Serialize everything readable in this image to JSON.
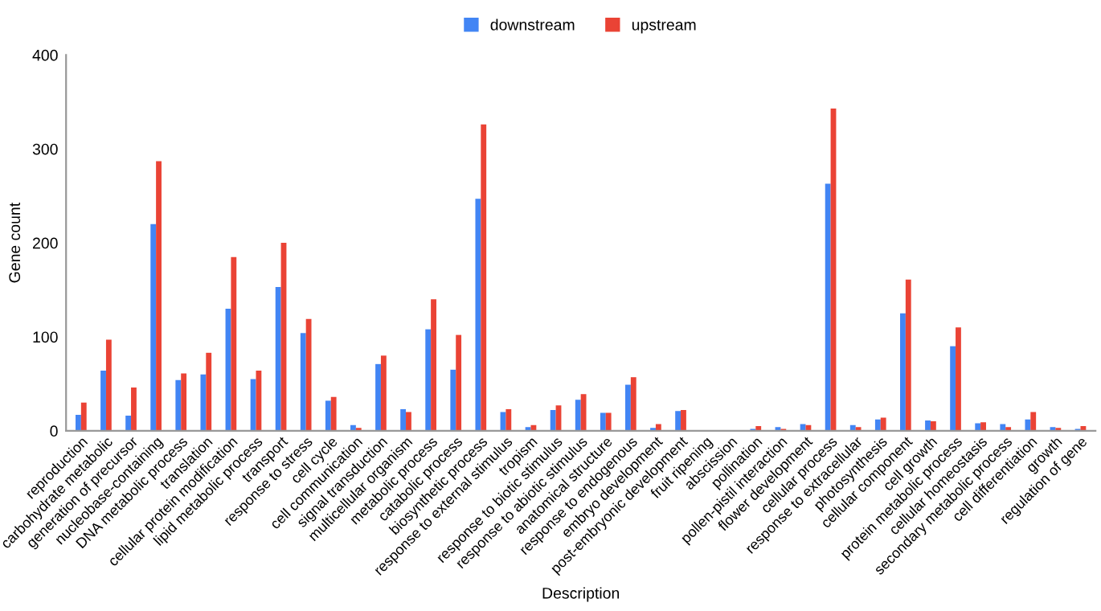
{
  "chart_data": {
    "type": "bar",
    "xlabel": "Description",
    "ylabel": "Gene count",
    "categories": [
      "reproduction",
      "carbohydrate metabolic",
      "generation of precursor",
      "nucleobase-containing",
      "DNA metabolic process",
      "translation",
      "cellular protein modification",
      "lipid metabolic process",
      "transport",
      "response to stress",
      "cell cycle",
      "cell communication",
      "signal transduction",
      "multicellular organism",
      "metabolic process",
      "catabolic process",
      "biosynthetic process",
      "response to external stimulus",
      "tropism",
      "response to biotic stimulus",
      "response to abiotic stimulus",
      "anatomical structure",
      "response to endogenous",
      "embryo development",
      "post-embryonic development",
      "fruit ripening",
      "abscission",
      "pollination",
      "pollen-pistil interaction",
      "flower development",
      "cellular process",
      "response to extracellular",
      "photosynthesis",
      "cellular component",
      "cell growth",
      "protein metabolic process",
      "cellular homeostasis",
      "secondary metabolic process",
      "cell differentiation",
      "growth",
      "regulation of gene"
    ],
    "series": [
      {
        "name": "downstream",
        "color": "#4285f4",
        "values": [
          17,
          64,
          16,
          220,
          54,
          60,
          130,
          55,
          153,
          104,
          32,
          6,
          71,
          23,
          108,
          65,
          247,
          20,
          4,
          22,
          33,
          19,
          49,
          3,
          21,
          0,
          0,
          2,
          4,
          7,
          263,
          6,
          12,
          125,
          11,
          90,
          8,
          7,
          12,
          4,
          2
        ]
      },
      {
        "name": "upstream",
        "color": "#ea4335",
        "values": [
          30,
          97,
          46,
          287,
          61,
          83,
          185,
          64,
          200,
          119,
          36,
          3,
          80,
          20,
          140,
          102,
          326,
          23,
          6,
          27,
          39,
          19,
          57,
          7,
          22,
          0,
          0,
          5,
          2,
          6,
          343,
          4,
          14,
          161,
          10,
          110,
          9,
          4,
          20,
          3,
          5
        ]
      }
    ],
    "ylim": [
      0,
      400
    ],
    "yticks": [
      0,
      100,
      200,
      300,
      400
    ],
    "grid": false,
    "legend": "top"
  }
}
